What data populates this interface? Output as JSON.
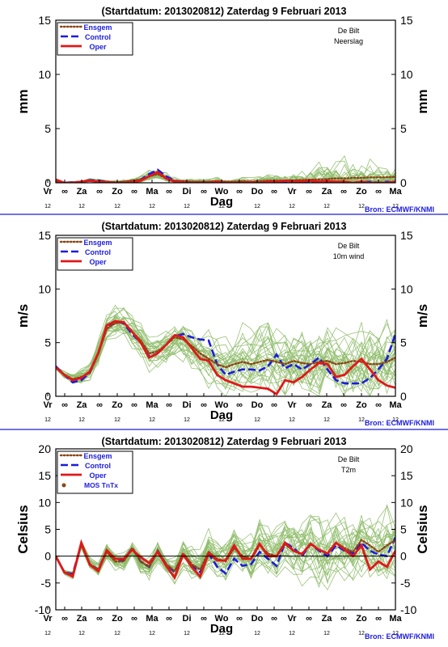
{
  "colors": {
    "ensgem": "#8b4513",
    "control": "#1c1cdc",
    "oper": "#e01818",
    "members": "#8fbc6a",
    "mos": "#8b4513",
    "frame": "#000000",
    "separator": "#1c1cdc",
    "source": "#1c1cdc"
  },
  "x_axis": {
    "day_labels": [
      "Vr",
      "Za",
      "Zo",
      "Ma",
      "Di",
      "Wo",
      "Do",
      "Vr",
      "Za",
      "Zo",
      "Ma"
    ],
    "half_day_symbol": "∞",
    "hour_label": "12",
    "label": "Dag"
  },
  "source_label": "Bron: ECMWF/KNMI",
  "legend": {
    "ensgem": "Ensgem",
    "control": "Control",
    "oper": "Oper",
    "mos": "MOS TnTx"
  },
  "panels": [
    {
      "title": "(Startdatum: 2013020812)   Zaterdag   9 Februari  2013",
      "station": "De Bilt",
      "variable": "Neerslag",
      "unit": "mm"
    },
    {
      "title": "(Startdatum: 2013020812)   Zaterdag   9 Februari  2013",
      "station": "De Bilt",
      "variable": "10m wind",
      "unit": "m/s"
    },
    {
      "title": "(Startdatum: 2013020812)   Zaterdag   9 Februari  2013",
      "station": "De Bilt",
      "variable": "T2m",
      "unit": "Celsius"
    }
  ],
  "chart_data": [
    {
      "type": "line",
      "title": "(Startdatum: 2013020812)   Zaterdag   9 Februari  2013",
      "ylabel": "mm",
      "xlabel": "Dag",
      "ylim": [
        0,
        15
      ],
      "yticks": [
        0,
        5,
        10,
        15
      ],
      "x_unit": "hours since start (6-hourly)",
      "x": [
        0,
        6,
        12,
        18,
        24,
        30,
        36,
        42,
        48,
        54,
        60,
        66,
        72,
        78,
        84,
        90,
        96,
        102,
        108,
        114,
        120,
        126,
        132,
        138,
        144,
        150,
        156,
        162,
        168,
        174,
        180,
        186,
        192,
        198,
        204,
        210,
        216,
        222,
        228,
        234,
        240
      ],
      "series": [
        {
          "name": "Ensgem",
          "values": [
            0.1,
            0.0,
            0.05,
            0.1,
            0.2,
            0.15,
            0.1,
            0.05,
            0.1,
            0.2,
            0.3,
            0.6,
            0.8,
            0.4,
            0.2,
            0.15,
            0.1,
            0.1,
            0.1,
            0.15,
            0.1,
            0.1,
            0.15,
            0.1,
            0.15,
            0.2,
            0.2,
            0.2,
            0.25,
            0.25,
            0.3,
            0.3,
            0.35,
            0.4,
            0.4,
            0.45,
            0.45,
            0.5,
            0.5,
            0.5,
            0.55
          ]
        },
        {
          "name": "Control",
          "values": [
            0.2,
            0.0,
            0.05,
            0.1,
            0.25,
            0.2,
            0.1,
            0.0,
            0.05,
            0.1,
            0.3,
            0.8,
            1.2,
            0.6,
            0.2,
            0.1,
            0.05,
            0.05,
            0.05,
            0.1,
            0.05,
            0.0,
            0.0,
            0.0,
            0.0,
            0.05,
            0.0,
            0.0,
            0.05,
            0.0,
            0.0,
            0.1,
            0.05,
            0.0,
            0.0,
            0.0,
            0.05,
            0.1,
            0.0,
            0.1,
            0.0
          ]
        },
        {
          "name": "Oper",
          "values": [
            0.3,
            0.0,
            0.0,
            0.1,
            0.2,
            0.1,
            0.05,
            0.0,
            0.0,
            0.05,
            0.2,
            0.6,
            1.0,
            0.4,
            0.1,
            0.05,
            0.0,
            0.0,
            0.0,
            0.1,
            0.0,
            0.0,
            0.0,
            0.05,
            0.0,
            0.1,
            0.1,
            0.2,
            0.1,
            0.15,
            0.2,
            0.1,
            0.15,
            0.1,
            0.1,
            0.0,
            0.1,
            0.0,
            0.0,
            0.0,
            0.1
          ]
        }
      ],
      "ensemble": {
        "count": 30,
        "seed": 11,
        "spread_profile": [
          0.3,
          0.1,
          0.2,
          0.3,
          0.6,
          0.5,
          0.4,
          0.4,
          0.6,
          0.9,
          1.6,
          2.2,
          2.4,
          1.6,
          1.0,
          0.8,
          0.8,
          0.8,
          0.9,
          1.0,
          1.0,
          1.1,
          1.2,
          1.3,
          1.5,
          1.8,
          2.2,
          2.6,
          3.2,
          3.6,
          4.0,
          4.6,
          5.2,
          5.6,
          6.0,
          5.6,
          5.0,
          4.6,
          4.2,
          3.8,
          3.6
        ],
        "min": 0,
        "max": 8
      }
    },
    {
      "type": "line",
      "title": "(Startdatum: 2013020812)   Zaterdag   9 Februari  2013",
      "ylabel": "m/s",
      "xlabel": "Dag",
      "ylim": [
        0,
        15
      ],
      "yticks": [
        0,
        5,
        10,
        15
      ],
      "x_unit": "hours since start (6-hourly)",
      "x": [
        0,
        6,
        12,
        18,
        24,
        30,
        36,
        42,
        48,
        54,
        60,
        66,
        72,
        78,
        84,
        90,
        96,
        102,
        108,
        114,
        120,
        126,
        132,
        138,
        144,
        150,
        156,
        162,
        168,
        174,
        180,
        186,
        192,
        198,
        204,
        210,
        216,
        222,
        228,
        234,
        240
      ],
      "series": [
        {
          "name": "Ensgem",
          "values": [
            2.7,
            2.0,
            1.6,
            1.8,
            2.2,
            4.0,
            6.3,
            6.8,
            6.9,
            6.0,
            5.2,
            4.0,
            4.2,
            4.8,
            5.5,
            5.3,
            4.7,
            4.0,
            3.5,
            3.0,
            2.7,
            3.0,
            3.2,
            3.0,
            3.2,
            3.4,
            3.2,
            3.0,
            3.3,
            3.1,
            3.0,
            3.2,
            3.3,
            3.0,
            3.1,
            3.3,
            3.2,
            3.0,
            3.0,
            3.2,
            3.6
          ]
        },
        {
          "name": "Control",
          "values": [
            2.8,
            2.0,
            1.3,
            1.5,
            2.2,
            4.0,
            6.4,
            7.0,
            6.8,
            5.8,
            5.0,
            3.7,
            4.0,
            4.8,
            5.6,
            5.8,
            5.5,
            5.3,
            5.2,
            3.0,
            2.0,
            2.3,
            2.5,
            2.5,
            2.4,
            2.8,
            3.9,
            2.6,
            3.0,
            2.5,
            3.0,
            3.6,
            2.5,
            1.5,
            1.2,
            1.2,
            1.2,
            1.7,
            2.5,
            3.5,
            5.8
          ]
        },
        {
          "name": "Oper",
          "values": [
            2.7,
            2.0,
            1.5,
            1.7,
            2.3,
            4.0,
            6.6,
            7.0,
            6.9,
            6.0,
            5.0,
            3.6,
            4.0,
            4.8,
            5.7,
            5.5,
            4.5,
            3.5,
            3.3,
            2.0,
            1.5,
            1.2,
            0.9,
            0.9,
            0.8,
            0.7,
            0.2,
            1.5,
            1.3,
            1.8,
            2.5,
            3.1,
            3.0,
            1.8,
            2.0,
            2.8,
            3.5,
            2.5,
            1.5,
            1.0,
            0.8
          ]
        }
      ],
      "ensemble": {
        "count": 30,
        "seed": 23,
        "spread_profile": [
          0.2,
          0.4,
          0.6,
          0.8,
          1.0,
          1.4,
          1.6,
          1.6,
          1.6,
          1.6,
          1.6,
          1.6,
          1.6,
          1.8,
          2.0,
          2.2,
          2.3,
          2.4,
          2.5,
          2.6,
          2.7,
          2.8,
          2.9,
          3.0,
          3.0,
          3.1,
          3.2,
          3.2,
          3.3,
          3.3,
          3.4,
          3.4,
          3.5,
          3.5,
          3.5,
          3.6,
          3.6,
          3.6,
          3.7,
          3.7,
          3.8
        ],
        "min": 0,
        "max": 9.5
      }
    },
    {
      "type": "line",
      "title": "(Startdatum: 2013020812)   Zaterdag   9 Februari  2013",
      "ylabel": "Celsius",
      "xlabel": "Dag",
      "ylim": [
        -10,
        20
      ],
      "yticks": [
        -10,
        -5,
        0,
        5,
        10,
        15,
        20
      ],
      "x_unit": "hours since start (6-hourly)",
      "x": [
        0,
        6,
        12,
        18,
        24,
        30,
        36,
        42,
        48,
        54,
        60,
        66,
        72,
        78,
        84,
        90,
        96,
        102,
        108,
        114,
        120,
        126,
        132,
        138,
        144,
        150,
        156,
        162,
        168,
        174,
        180,
        186,
        192,
        198,
        204,
        210,
        216,
        222,
        228,
        234,
        240
      ],
      "series": [
        {
          "name": "Ensgem",
          "values": [
            0.0,
            -3.0,
            -3.5,
            2.2,
            -1.5,
            -2.5,
            0.8,
            -1.0,
            -1.0,
            1.5,
            -1.0,
            -2.0,
            1.0,
            -1.5,
            -2.8,
            0.5,
            -1.5,
            -2.5,
            0.8,
            -0.5,
            -1.0,
            1.5,
            0.0,
            -0.5,
            2.0,
            0.5,
            0.0,
            2.2,
            1.0,
            0.3,
            2.3,
            1.2,
            0.5,
            2.5,
            1.5,
            0.8,
            3.0,
            2.0,
            0.8,
            2.0,
            3.0
          ]
        },
        {
          "name": "Control",
          "values": [
            0.0,
            -3.0,
            -3.3,
            2.3,
            -1.5,
            -2.5,
            1.0,
            -0.5,
            -0.8,
            1.5,
            -1.0,
            -2.0,
            1.0,
            -1.5,
            -3.0,
            0.5,
            -1.8,
            -3.0,
            0.5,
            -2.0,
            -3.2,
            -0.5,
            -1.8,
            -1.5,
            0.8,
            -0.5,
            -1.8,
            2.5,
            1.5,
            0.0,
            2.3,
            1.0,
            0.0,
            2.0,
            1.0,
            0.5,
            2.5,
            1.0,
            0.3,
            0.0,
            3.5
          ]
        },
        {
          "name": "Oper",
          "values": [
            0.0,
            -3.0,
            -3.8,
            2.5,
            -1.6,
            -2.8,
            1.1,
            -0.5,
            -0.5,
            1.2,
            -0.2,
            -1.3,
            0.8,
            -1.8,
            -4.0,
            0.3,
            -2.0,
            -3.8,
            0.6,
            -0.8,
            -0.8,
            2.0,
            -0.5,
            -0.5,
            2.3,
            0.0,
            0.0,
            2.5,
            1.0,
            0.4,
            2.3,
            1.2,
            0.5,
            2.5,
            1.2,
            0.0,
            2.0,
            -2.5,
            -1.0,
            -2.0,
            1.0
          ]
        }
      ],
      "ensemble": {
        "count": 30,
        "seed": 37,
        "spread_profile": [
          0.2,
          0.5,
          0.8,
          1.0,
          1.2,
          1.4,
          1.5,
          1.6,
          1.8,
          2.0,
          2.2,
          2.4,
          2.6,
          2.8,
          3.0,
          3.2,
          3.4,
          3.6,
          3.8,
          4.0,
          4.2,
          4.4,
          4.6,
          4.8,
          5.0,
          5.2,
          5.4,
          5.6,
          5.8,
          6.0,
          6.2,
          6.4,
          6.6,
          6.8,
          7.0,
          7.1,
          7.2,
          7.3,
          7.4,
          7.5,
          7.6
        ],
        "min": -10,
        "max": 12
      },
      "mos": {
        "name": "MOS TnTx",
        "x": [],
        "values": []
      }
    }
  ]
}
